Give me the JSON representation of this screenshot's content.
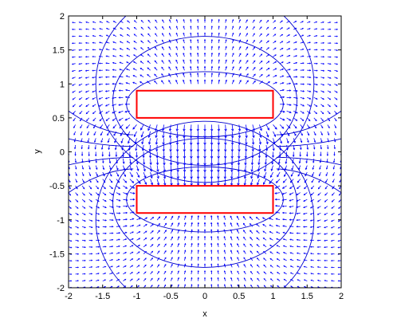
{
  "chart_data": {
    "type": "field-plot",
    "xlabel": "x",
    "ylabel": "y",
    "xlim": [
      -2,
      2
    ],
    "ylim": [
      -2,
      2
    ],
    "xticks": [
      -2,
      -1.5,
      -1,
      -0.5,
      0,
      0.5,
      1,
      1.5,
      2
    ],
    "yticks": [
      -2,
      -1.5,
      -1,
      -0.5,
      0,
      0.5,
      1,
      1.5,
      2
    ],
    "xtick_labels": [
      "-2",
      "-1.5",
      "-1",
      "-0.5",
      "0",
      "0.5",
      "1",
      "1.5",
      "2"
    ],
    "ytick_labels": [
      "-2",
      "-1.5",
      "-1",
      "-0.5",
      "0",
      "0.5",
      "1",
      "1.5",
      "2"
    ],
    "grid": false,
    "plates": [
      {
        "name": "top-plate",
        "x": [
          -1,
          1
        ],
        "y": [
          0.5,
          0.9
        ]
      },
      {
        "name": "bottom-plate",
        "x": [
          -1,
          1
        ],
        "y": [
          -0.9,
          -0.5
        ]
      }
    ],
    "quiver_spacing": 0.1,
    "equipotential_ellipses": [
      {
        "center": [
          0,
          0.7
        ],
        "rx": 1.15,
        "ry": 0.48
      },
      {
        "center": [
          0,
          -0.7
        ],
        "rx": 1.15,
        "ry": 0.48
      },
      {
        "center": [
          0,
          0.75
        ],
        "rx": 1.35,
        "ry": 0.95
      },
      {
        "center": [
          0,
          -0.75
        ],
        "rx": 1.35,
        "ry": 0.95
      },
      {
        "center": [
          0,
          1.0
        ],
        "rx": 1.6,
        "ry": 1.45
      },
      {
        "center": [
          0,
          -1.0
        ],
        "rx": 1.6,
        "ry": 1.45
      }
    ],
    "colors": {
      "arrows": "#0000ff",
      "contours": "#0000cc",
      "plates": "#ff0000",
      "axes": "#000000"
    }
  }
}
